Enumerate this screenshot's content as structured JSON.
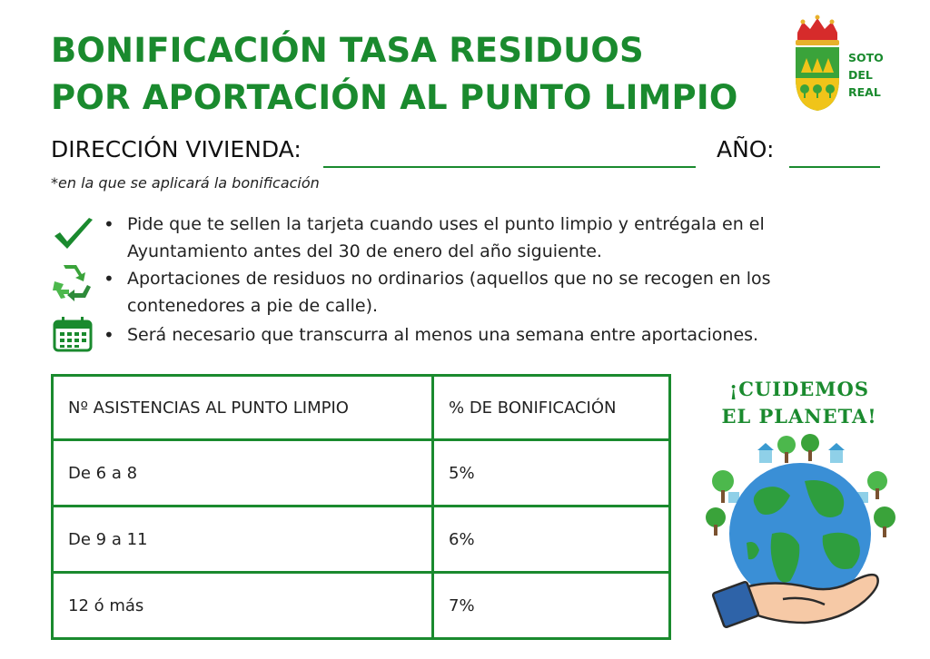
{
  "title": {
    "line1": "BONIFICACIÓN TASA RESIDUOS",
    "line2": "POR APORTACIÓN AL PUNTO LIMPIO"
  },
  "logo": {
    "line1": "SOTO",
    "line2": "DEL",
    "line3": "REAL"
  },
  "form": {
    "address_label": "DIRECCIÓN VIVIENDA:",
    "year_label": "AÑO:",
    "note": "*en la que se aplicará la bonificación"
  },
  "bullets": [
    {
      "icon": "checkmark-icon",
      "text": "Pide que te sellen la tarjeta cuando uses el punto limpio y entrégala en el Ayuntamiento antes del 30 de enero del año siguiente."
    },
    {
      "icon": "recycle-icon",
      "text": "Aportaciones de residuos no ordinarios (aquellos que no se recogen en los contenedores a pie de calle)."
    },
    {
      "icon": "calendar-icon",
      "text": "Será necesario que transcurra al menos una semana entre aportaciones."
    }
  ],
  "table": {
    "headers": [
      "Nº ASISTENCIAS AL PUNTO LIMPIO",
      "% DE BONIFICACIÓN"
    ],
    "rows": [
      [
        "De 6 a 8",
        "5%"
      ],
      [
        "De 9 a 11",
        "6%"
      ],
      [
        "12 ó más",
        "7%"
      ]
    ]
  },
  "slogan": {
    "line1": "¡CUIDEMOS",
    "line2": "EL PLANETA!"
  },
  "colors": {
    "brand_green": "#1a8a2e",
    "text": "#222222"
  }
}
